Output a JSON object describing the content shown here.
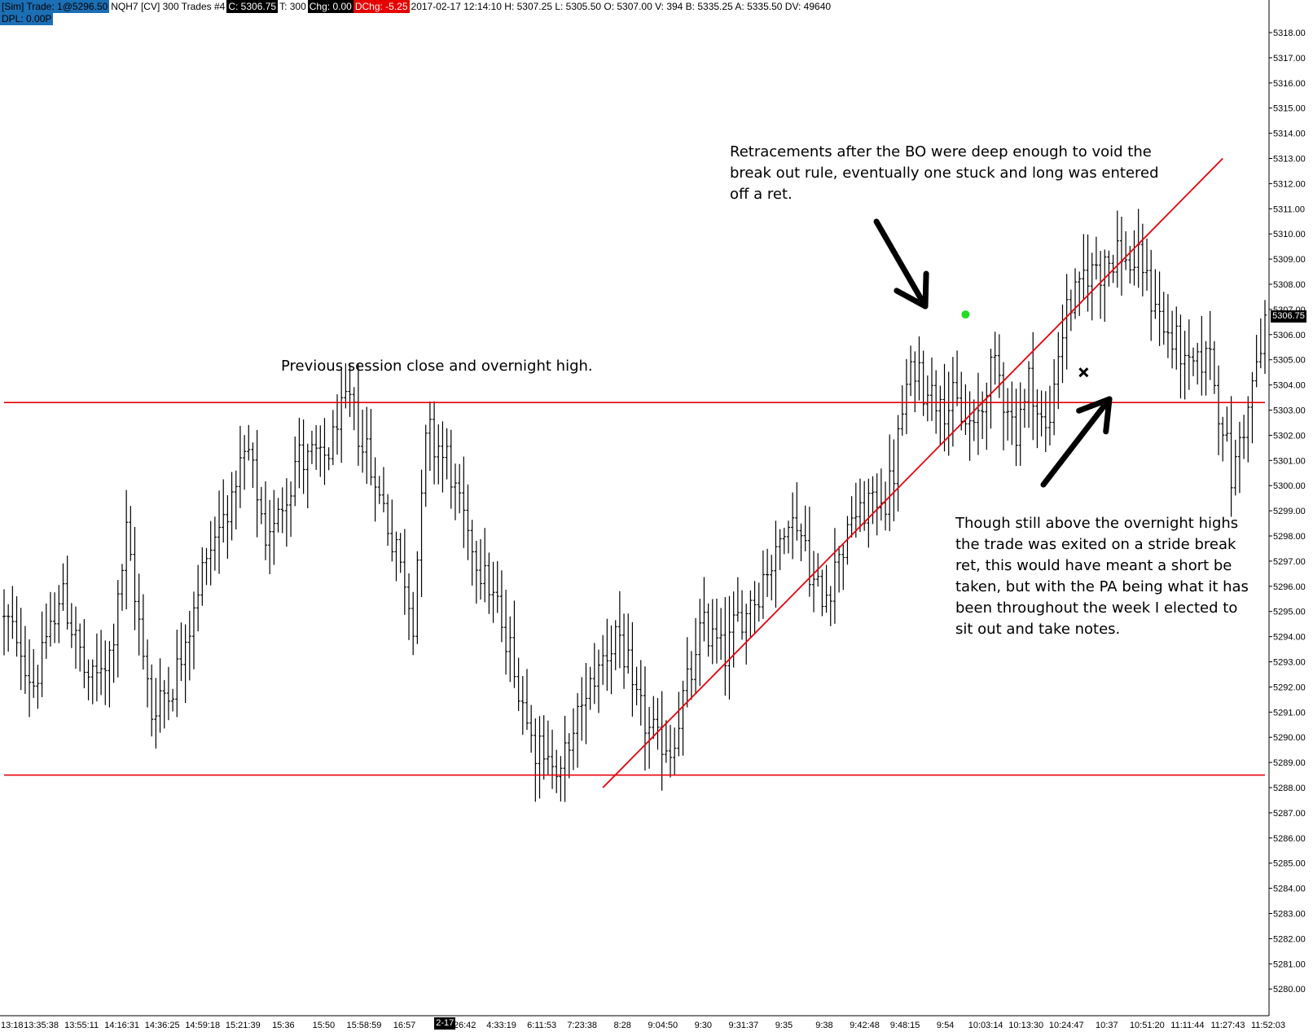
{
  "header": {
    "sim_tag": "[Sim]  Trade: 1@5296.50",
    "symbol": "NQH7 [CV]  300 Trades  #4",
    "close": "C: 5306.75",
    "ticks": "T: 300",
    "change": "Chg: 0.00",
    "dchange": "DChg: -5.25",
    "stats": "2017-02-17 12:14:10 H: 5307.25 L: 5305.50 O: 5307.00 V: 394 B: 5335.25 A: 5335.50 DV: 49640",
    "dpl": "DPL: 0.00P"
  },
  "last_price_tag": "5306.75",
  "date_marker": "2-17",
  "annotations": {
    "overnight": "Previous session close and overnight high.",
    "retracements": [
      "Retracements after the BO were deep enough to void the",
      "break out rule, eventually one stuck and long was entered",
      "off a ret."
    ],
    "exit": [
      "Though still above the overnight highs",
      "the trade was exited on a stride break",
      "ret, this would have meant a short be",
      "taken, but with the PA being what it has",
      "been throughout the week I elected to",
      "sit out and take notes."
    ]
  },
  "colors": {
    "bars": "#000000",
    "lines": "#e8000b",
    "entry_dot": "#22dd22",
    "exit_mark": "#000000"
  },
  "chart_data": {
    "type": "ohlc-bar",
    "title": "NQH7 [CV] 300 Trades",
    "ylim": [
      5279.5,
      5318.5
    ],
    "y_ticks": [
      "5318.00",
      "5317.00",
      "5316.00",
      "5315.00",
      "5314.00",
      "5313.00",
      "5312.00",
      "5311.00",
      "5310.00",
      "5309.00",
      "5308.00",
      "5307.00",
      "5306.00",
      "5305.00",
      "5304.00",
      "5303.00",
      "5302.00",
      "5301.00",
      "5300.00",
      "5299.00",
      "5298.00",
      "5297.00",
      "5296.00",
      "5295.00",
      "5294.00",
      "5293.00",
      "5292.00",
      "5291.00",
      "5290.00",
      "5289.00",
      "5288.00",
      "5287.00",
      "5286.00",
      "5285.00",
      "5284.00",
      "5283.00",
      "5282.00",
      "5281.00",
      "5280.00"
    ],
    "x_tick_labels": [
      "13:18",
      "13:35:38",
      "13:55:11",
      "14:16:31",
      "14:36:25",
      "14:59:18",
      "15:21:39",
      "15:36",
      "15:50",
      "15:58:59",
      "16:57",
      "3:26:42",
      "4:33:19",
      "6:11:53",
      "7:23:38",
      "8:28",
      "9:04:50",
      "9:30",
      "9:31:37",
      "9:35",
      "9:38",
      "9:42:48",
      "9:48:15",
      "9:54",
      "10:03:14",
      "10:13:30",
      "10:24:47",
      "10:37",
      "10:51:20",
      "11:11:44",
      "11:27:43",
      "11:52:03"
    ],
    "bar_count": 300,
    "price_path_anchors": [
      [
        0,
        5294.8
      ],
      [
        7,
        5292.2
      ],
      [
        14,
        5295.8
      ],
      [
        20,
        5292.0
      ],
      [
        25,
        5293.2
      ],
      [
        29,
        5298.0
      ],
      [
        35,
        5291.0
      ],
      [
        41,
        5292.6
      ],
      [
        48,
        5297.2
      ],
      [
        58,
        5301.2
      ],
      [
        62,
        5297.6
      ],
      [
        70,
        5301.3
      ],
      [
        75,
        5300.8
      ],
      [
        82,
        5303.4
      ],
      [
        88,
        5300.2
      ],
      [
        93,
        5297.5
      ],
      [
        97,
        5294.8
      ],
      [
        100,
        5302.0
      ],
      [
        104,
        5301.5
      ],
      [
        110,
        5298.0
      ],
      [
        114,
        5296.6
      ],
      [
        119,
        5293.9
      ],
      [
        126,
        5289.8
      ],
      [
        132,
        5288.6
      ],
      [
        139,
        5292.2
      ],
      [
        145,
        5294.2
      ],
      [
        150,
        5291.3
      ],
      [
        155,
        5289.7
      ],
      [
        158,
        5289.4
      ],
      [
        166,
        5294.5
      ],
      [
        171,
        5293.6
      ],
      [
        180,
        5296.3
      ],
      [
        187,
        5298.9
      ],
      [
        190,
        5297.5
      ],
      [
        192,
        5296.0
      ],
      [
        194,
        5295.5
      ],
      [
        201,
        5298.6
      ],
      [
        210,
        5299.8
      ],
      [
        215,
        5304.6
      ],
      [
        224,
        5303.3
      ],
      [
        230,
        5302.2
      ],
      [
        235,
        5305.0
      ],
      [
        240,
        5302.0
      ],
      [
        243,
        5304.3
      ],
      [
        247,
        5301.9
      ],
      [
        252,
        5307.1
      ],
      [
        258,
        5308.6
      ],
      [
        264,
        5309.2
      ],
      [
        270,
        5308.5
      ],
      [
        276,
        5306.0
      ],
      [
        281,
        5304.8
      ],
      [
        286,
        5305.3
      ],
      [
        291,
        5300.3
      ],
      [
        299,
        5306.2
      ]
    ],
    "horizontal_lines": [
      {
        "name": "overnight-high",
        "y": 5303.3
      },
      {
        "name": "support",
        "y": 5288.5
      }
    ],
    "trendline": {
      "from": {
        "bar": 142,
        "price": 5288.0
      },
      "to": {
        "bar": 289,
        "price": 5313.0
      }
    },
    "entry": {
      "bar": 228,
      "price": 5306.8
    },
    "exit": {
      "bar": 256,
      "price": 5304.5
    },
    "arrows": [
      {
        "name": "retracement-arrow",
        "direction": "down-right"
      },
      {
        "name": "exit-arrow",
        "direction": "up-right"
      }
    ],
    "grid": false
  }
}
